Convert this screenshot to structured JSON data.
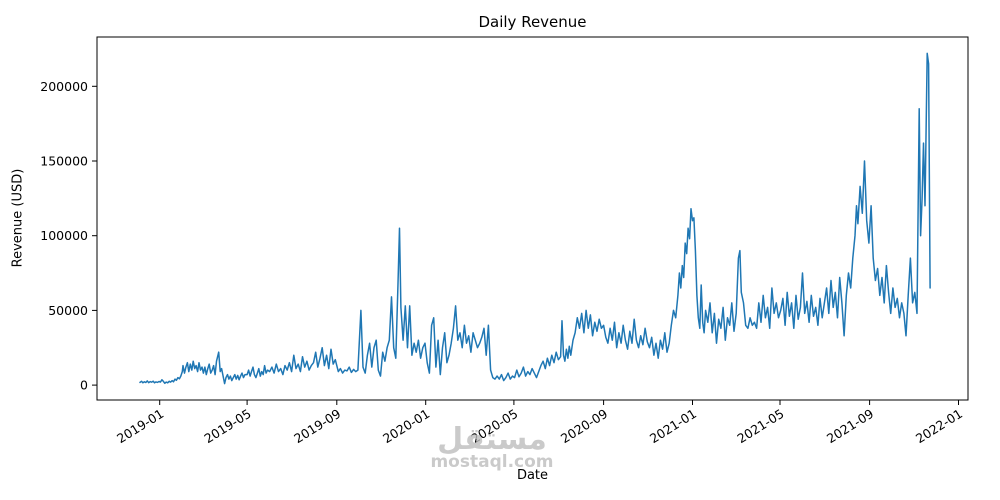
{
  "watermark": {
    "line1": "مستقل",
    "line2": "mostaql.com"
  },
  "chart_data": {
    "type": "line",
    "title": "Daily Revenue",
    "xlabel": "Date",
    "ylabel": "Revenue (USD)",
    "line_color": "#1f77b4",
    "grid": false,
    "legend": "none",
    "x_encoding": "days since 2018-12-01",
    "xlim": [
      -55,
      1140
    ],
    "ylim": [
      -10000,
      233000
    ],
    "xticks": [
      {
        "d": 31,
        "label": "2019-01"
      },
      {
        "d": 151,
        "label": "2019-05"
      },
      {
        "d": 274,
        "label": "2019-09"
      },
      {
        "d": 396,
        "label": "2020-01"
      },
      {
        "d": 517,
        "label": "2020-05"
      },
      {
        "d": 640,
        "label": "2020-09"
      },
      {
        "d": 762,
        "label": "2021-01"
      },
      {
        "d": 882,
        "label": "2021-05"
      },
      {
        "d": 1005,
        "label": "2021-09"
      },
      {
        "d": 1127,
        "label": "2022-01"
      }
    ],
    "yticks": [
      {
        "v": 0,
        "label": "0"
      },
      {
        "v": 50000,
        "label": "50000"
      },
      {
        "v": 100000,
        "label": "100000"
      },
      {
        "v": 150000,
        "label": "150000"
      },
      {
        "v": 200000,
        "label": "200000"
      }
    ],
    "points": [
      [
        4,
        1800
      ],
      [
        6,
        2500
      ],
      [
        8,
        1500
      ],
      [
        10,
        2200
      ],
      [
        12,
        1700
      ],
      [
        14,
        2800
      ],
      [
        16,
        1600
      ],
      [
        18,
        2300
      ],
      [
        20,
        1900
      ],
      [
        22,
        2600
      ],
      [
        24,
        1500
      ],
      [
        26,
        2100
      ],
      [
        28,
        1800
      ],
      [
        30,
        2400
      ],
      [
        32,
        2000
      ],
      [
        34,
        3500
      ],
      [
        36,
        2500
      ],
      [
        38,
        1200
      ],
      [
        40,
        2000
      ],
      [
        42,
        1500
      ],
      [
        44,
        2500
      ],
      [
        46,
        2000
      ],
      [
        48,
        3000
      ],
      [
        50,
        2200
      ],
      [
        52,
        4000
      ],
      [
        54,
        3200
      ],
      [
        56,
        5000
      ],
      [
        58,
        4200
      ],
      [
        60,
        6000
      ],
      [
        62,
        9000
      ],
      [
        63,
        13000
      ],
      [
        65,
        8000
      ],
      [
        67,
        12000
      ],
      [
        69,
        15000
      ],
      [
        71,
        9000
      ],
      [
        73,
        14000
      ],
      [
        75,
        10000
      ],
      [
        77,
        16000
      ],
      [
        79,
        11000
      ],
      [
        81,
        13000
      ],
      [
        83,
        9000
      ],
      [
        85,
        15000
      ],
      [
        87,
        10000
      ],
      [
        89,
        12000
      ],
      [
        91,
        8000
      ],
      [
        93,
        12000
      ],
      [
        95,
        7000
      ],
      [
        97,
        11000
      ],
      [
        99,
        14000
      ],
      [
        101,
        8000
      ],
      [
        103,
        10000
      ],
      [
        105,
        13000
      ],
      [
        107,
        7000
      ],
      [
        109,
        16000
      ],
      [
        112,
        22000
      ],
      [
        114,
        9000
      ],
      [
        116,
        11000
      ],
      [
        118,
        6000
      ],
      [
        120,
        1000
      ],
      [
        122,
        5000
      ],
      [
        124,
        7000
      ],
      [
        126,
        4000
      ],
      [
        128,
        6000
      ],
      [
        130,
        3000
      ],
      [
        132,
        5000
      ],
      [
        134,
        7000
      ],
      [
        136,
        4000
      ],
      [
        138,
        6500
      ],
      [
        140,
        3500
      ],
      [
        142,
        6000
      ],
      [
        144,
        8000
      ],
      [
        146,
        5000
      ],
      [
        148,
        7000
      ],
      [
        151,
        7000
      ],
      [
        153,
        10000
      ],
      [
        155,
        6000
      ],
      [
        157,
        9000
      ],
      [
        159,
        12000
      ],
      [
        161,
        7000
      ],
      [
        163,
        5000
      ],
      [
        165,
        8000
      ],
      [
        167,
        11000
      ],
      [
        169,
        6000
      ],
      [
        171,
        9000
      ],
      [
        173,
        7000
      ],
      [
        175,
        13000
      ],
      [
        177,
        8000
      ],
      [
        179,
        10000
      ],
      [
        182,
        9000
      ],
      [
        185,
        12000
      ],
      [
        188,
        8000
      ],
      [
        191,
        14000
      ],
      [
        194,
        9000
      ],
      [
        197,
        11000
      ],
      [
        200,
        7000
      ],
      [
        203,
        13000
      ],
      [
        206,
        10000
      ],
      [
        209,
        15000
      ],
      [
        212,
        9000
      ],
      [
        215,
        20000
      ],
      [
        218,
        11000
      ],
      [
        221,
        14000
      ],
      [
        224,
        9000
      ],
      [
        227,
        19000
      ],
      [
        230,
        12000
      ],
      [
        233,
        16000
      ],
      [
        236,
        10000
      ],
      [
        239,
        13000
      ],
      [
        242,
        15000
      ],
      [
        245,
        22000
      ],
      [
        248,
        12000
      ],
      [
        251,
        18000
      ],
      [
        254,
        25000
      ],
      [
        257,
        13000
      ],
      [
        260,
        20000
      ],
      [
        263,
        11000
      ],
      [
        266,
        24000
      ],
      [
        269,
        14000
      ],
      [
        272,
        17000
      ],
      [
        276,
        9000
      ],
      [
        279,
        11000
      ],
      [
        282,
        8000
      ],
      [
        285,
        10000
      ],
      [
        288,
        9500
      ],
      [
        291,
        12000
      ],
      [
        294,
        8500
      ],
      [
        297,
        10500
      ],
      [
        300,
        9000
      ],
      [
        303,
        10000
      ],
      [
        307,
        50000
      ],
      [
        310,
        12000
      ],
      [
        313,
        8000
      ],
      [
        316,
        20000
      ],
      [
        319,
        28000
      ],
      [
        322,
        12000
      ],
      [
        325,
        25000
      ],
      [
        328,
        30000
      ],
      [
        331,
        10000
      ],
      [
        334,
        6000
      ],
      [
        337,
        22000
      ],
      [
        340,
        16000
      ],
      [
        343,
        25000
      ],
      [
        346,
        30000
      ],
      [
        349,
        59000
      ],
      [
        352,
        25000
      ],
      [
        355,
        18000
      ],
      [
        358,
        68000
      ],
      [
        360,
        105000
      ],
      [
        362,
        52000
      ],
      [
        365,
        30000
      ],
      [
        368,
        53000
      ],
      [
        371,
        25000
      ],
      [
        374,
        53000
      ],
      [
        377,
        20000
      ],
      [
        380,
        28000
      ],
      [
        383,
        22000
      ],
      [
        386,
        30000
      ],
      [
        389,
        18000
      ],
      [
        392,
        25000
      ],
      [
        395,
        28000
      ],
      [
        398,
        15000
      ],
      [
        401,
        8000
      ],
      [
        404,
        40000
      ],
      [
        407,
        45000
      ],
      [
        410,
        12000
      ],
      [
        413,
        30000
      ],
      [
        416,
        7000
      ],
      [
        419,
        25000
      ],
      [
        422,
        35000
      ],
      [
        425,
        15000
      ],
      [
        428,
        20000
      ],
      [
        431,
        28000
      ],
      [
        434,
        38000
      ],
      [
        437,
        53000
      ],
      [
        440,
        30000
      ],
      [
        443,
        35000
      ],
      [
        446,
        25000
      ],
      [
        449,
        40000
      ],
      [
        452,
        28000
      ],
      [
        455,
        33000
      ],
      [
        458,
        22000
      ],
      [
        461,
        35000
      ],
      [
        464,
        30000
      ],
      [
        467,
        25000
      ],
      [
        470,
        28000
      ],
      [
        473,
        32000
      ],
      [
        476,
        38000
      ],
      [
        479,
        20000
      ],
      [
        482,
        40000
      ],
      [
        485,
        10000
      ],
      [
        488,
        5000
      ],
      [
        491,
        4000
      ],
      [
        494,
        6000
      ],
      [
        497,
        4000
      ],
      [
        500,
        7000
      ],
      [
        503,
        3000
      ],
      [
        506,
        5000
      ],
      [
        509,
        8000
      ],
      [
        512,
        4000
      ],
      [
        515,
        6000
      ],
      [
        518,
        5000
      ],
      [
        521,
        10000
      ],
      [
        524,
        5500
      ],
      [
        527,
        8000
      ],
      [
        530,
        12000
      ],
      [
        533,
        6000
      ],
      [
        536,
        9000
      ],
      [
        539,
        7000
      ],
      [
        542,
        11000
      ],
      [
        545,
        8000
      ],
      [
        548,
        5000
      ],
      [
        551,
        9000
      ],
      [
        554,
        13000
      ],
      [
        557,
        16000
      ],
      [
        560,
        11000
      ],
      [
        563,
        18000
      ],
      [
        566,
        13000
      ],
      [
        569,
        20000
      ],
      [
        572,
        15000
      ],
      [
        575,
        22000
      ],
      [
        578,
        17000
      ],
      [
        581,
        19000
      ],
      [
        583,
        43000
      ],
      [
        585,
        20000
      ],
      [
        587,
        16000
      ],
      [
        589,
        24000
      ],
      [
        591,
        18000
      ],
      [
        593,
        26000
      ],
      [
        595,
        20000
      ],
      [
        598,
        30000
      ],
      [
        601,
        35000
      ],
      [
        604,
        45000
      ],
      [
        607,
        38000
      ],
      [
        610,
        48000
      ],
      [
        613,
        35000
      ],
      [
        616,
        50000
      ],
      [
        619,
        38000
      ],
      [
        622,
        47000
      ],
      [
        625,
        33000
      ],
      [
        628,
        42000
      ],
      [
        631,
        36000
      ],
      [
        634,
        44000
      ],
      [
        637,
        38000
      ],
      [
        640,
        40000
      ],
      [
        643,
        32000
      ],
      [
        646,
        28000
      ],
      [
        649,
        38000
      ],
      [
        652,
        30000
      ],
      [
        655,
        42000
      ],
      [
        658,
        25000
      ],
      [
        661,
        35000
      ],
      [
        664,
        28000
      ],
      [
        667,
        40000
      ],
      [
        670,
        30000
      ],
      [
        673,
        24000
      ],
      [
        676,
        36000
      ],
      [
        679,
        28000
      ],
      [
        682,
        44000
      ],
      [
        685,
        30000
      ],
      [
        688,
        25000
      ],
      [
        691,
        33000
      ],
      [
        694,
        27000
      ],
      [
        697,
        38000
      ],
      [
        700,
        29000
      ],
      [
        703,
        25000
      ],
      [
        706,
        32000
      ],
      [
        709,
        20000
      ],
      [
        712,
        28000
      ],
      [
        715,
        18000
      ],
      [
        718,
        30000
      ],
      [
        721,
        24000
      ],
      [
        724,
        35000
      ],
      [
        727,
        22000
      ],
      [
        730,
        28000
      ],
      [
        733,
        40000
      ],
      [
        736,
        50000
      ],
      [
        739,
        45000
      ],
      [
        742,
        60000
      ],
      [
        744,
        75000
      ],
      [
        746,
        65000
      ],
      [
        748,
        80000
      ],
      [
        750,
        72000
      ],
      [
        752,
        95000
      ],
      [
        754,
        88000
      ],
      [
        756,
        105000
      ],
      [
        758,
        98000
      ],
      [
        760,
        118000
      ],
      [
        762,
        110000
      ],
      [
        764,
        112000
      ],
      [
        766,
        90000
      ],
      [
        768,
        60000
      ],
      [
        770,
        45000
      ],
      [
        772,
        38000
      ],
      [
        774,
        67000
      ],
      [
        776,
        42000
      ],
      [
        778,
        35000
      ],
      [
        780,
        50000
      ],
      [
        783,
        42000
      ],
      [
        786,
        55000
      ],
      [
        789,
        35000
      ],
      [
        792,
        48000
      ],
      [
        795,
        28000
      ],
      [
        798,
        44000
      ],
      [
        801,
        38000
      ],
      [
        804,
        52000
      ],
      [
        807,
        30000
      ],
      [
        810,
        45000
      ],
      [
        813,
        40000
      ],
      [
        816,
        55000
      ],
      [
        819,
        36000
      ],
      [
        822,
        48000
      ],
      [
        825,
        85000
      ],
      [
        827,
        90000
      ],
      [
        829,
        62000
      ],
      [
        832,
        55000
      ],
      [
        835,
        40000
      ],
      [
        838,
        38000
      ],
      [
        841,
        45000
      ],
      [
        844,
        40000
      ],
      [
        847,
        42000
      ],
      [
        850,
        38000
      ],
      [
        853,
        55000
      ],
      [
        856,
        42000
      ],
      [
        859,
        60000
      ],
      [
        862,
        45000
      ],
      [
        865,
        52000
      ],
      [
        868,
        38000
      ],
      [
        871,
        65000
      ],
      [
        874,
        48000
      ],
      [
        877,
        55000
      ],
      [
        880,
        45000
      ],
      [
        883,
        50000
      ],
      [
        886,
        58000
      ],
      [
        889,
        40000
      ],
      [
        892,
        62000
      ],
      [
        895,
        46000
      ],
      [
        898,
        55000
      ],
      [
        901,
        38000
      ],
      [
        904,
        60000
      ],
      [
        907,
        44000
      ],
      [
        910,
        52000
      ],
      [
        913,
        75000
      ],
      [
        916,
        48000
      ],
      [
        919,
        56000
      ],
      [
        922,
        42000
      ],
      [
        925,
        60000
      ],
      [
        928,
        46000
      ],
      [
        931,
        52000
      ],
      [
        934,
        40000
      ],
      [
        937,
        58000
      ],
      [
        940,
        45000
      ],
      [
        943,
        55000
      ],
      [
        946,
        65000
      ],
      [
        949,
        48000
      ],
      [
        952,
        70000
      ],
      [
        955,
        52000
      ],
      [
        958,
        62000
      ],
      [
        961,
        45000
      ],
      [
        964,
        72000
      ],
      [
        967,
        55000
      ],
      [
        970,
        33000
      ],
      [
        973,
        60000
      ],
      [
        976,
        75000
      ],
      [
        979,
        65000
      ],
      [
        982,
        85000
      ],
      [
        985,
        100000
      ],
      [
        987,
        120000
      ],
      [
        989,
        108000
      ],
      [
        992,
        133000
      ],
      [
        995,
        115000
      ],
      [
        998,
        150000
      ],
      [
        1001,
        110000
      ],
      [
        1004,
        95000
      ],
      [
        1007,
        120000
      ],
      [
        1010,
        85000
      ],
      [
        1013,
        70000
      ],
      [
        1016,
        78000
      ],
      [
        1019,
        60000
      ],
      [
        1022,
        72000
      ],
      [
        1025,
        55000
      ],
      [
        1028,
        80000
      ],
      [
        1031,
        62000
      ],
      [
        1034,
        48000
      ],
      [
        1037,
        65000
      ],
      [
        1040,
        52000
      ],
      [
        1043,
        58000
      ],
      [
        1046,
        45000
      ],
      [
        1049,
        55000
      ],
      [
        1052,
        48000
      ],
      [
        1055,
        33000
      ],
      [
        1058,
        60000
      ],
      [
        1061,
        85000
      ],
      [
        1064,
        55000
      ],
      [
        1067,
        62000
      ],
      [
        1070,
        48000
      ],
      [
        1073,
        185000
      ],
      [
        1075,
        100000
      ],
      [
        1077,
        125000
      ],
      [
        1079,
        162000
      ],
      [
        1081,
        120000
      ],
      [
        1084,
        222000
      ],
      [
        1086,
        215000
      ],
      [
        1088,
        65000
      ]
    ]
  }
}
